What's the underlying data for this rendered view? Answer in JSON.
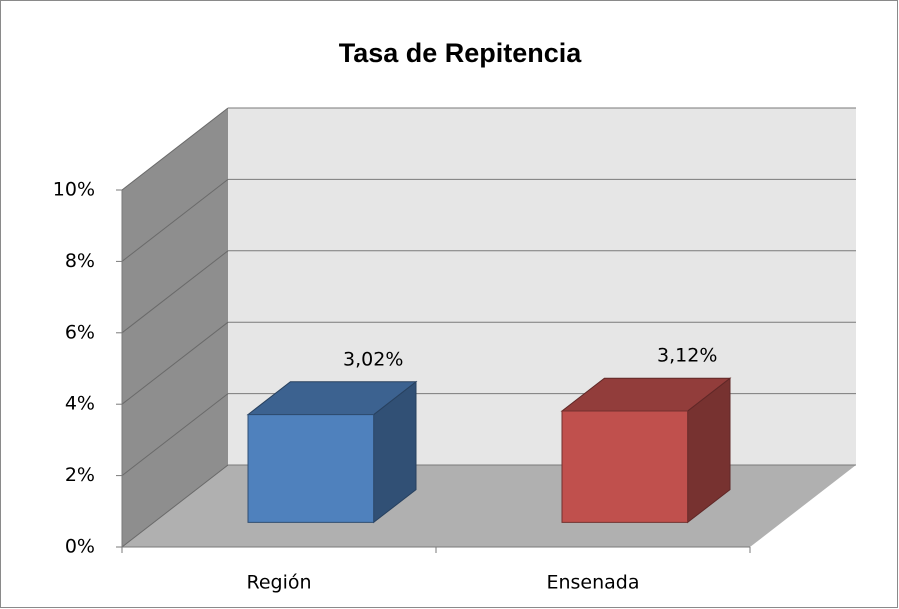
{
  "chart_data": {
    "type": "bar3d",
    "title": "Tasa de Repitencia",
    "categories": [
      "Región",
      "Ensenada"
    ],
    "values": [
      3.02,
      3.12
    ],
    "value_labels": [
      "3,02%",
      "3,12%"
    ],
    "colors": [
      "#4f81bd",
      "#c0504d"
    ],
    "ylim": [
      0,
      10
    ],
    "yticks": [
      {
        "value": 0,
        "label": "0%"
      },
      {
        "value": 2,
        "label": "2%"
      },
      {
        "value": 4,
        "label": "4%"
      },
      {
        "value": 6,
        "label": "6%"
      },
      {
        "value": 8,
        "label": "8%"
      },
      {
        "value": 10,
        "label": "10%"
      }
    ],
    "grid": true
  }
}
